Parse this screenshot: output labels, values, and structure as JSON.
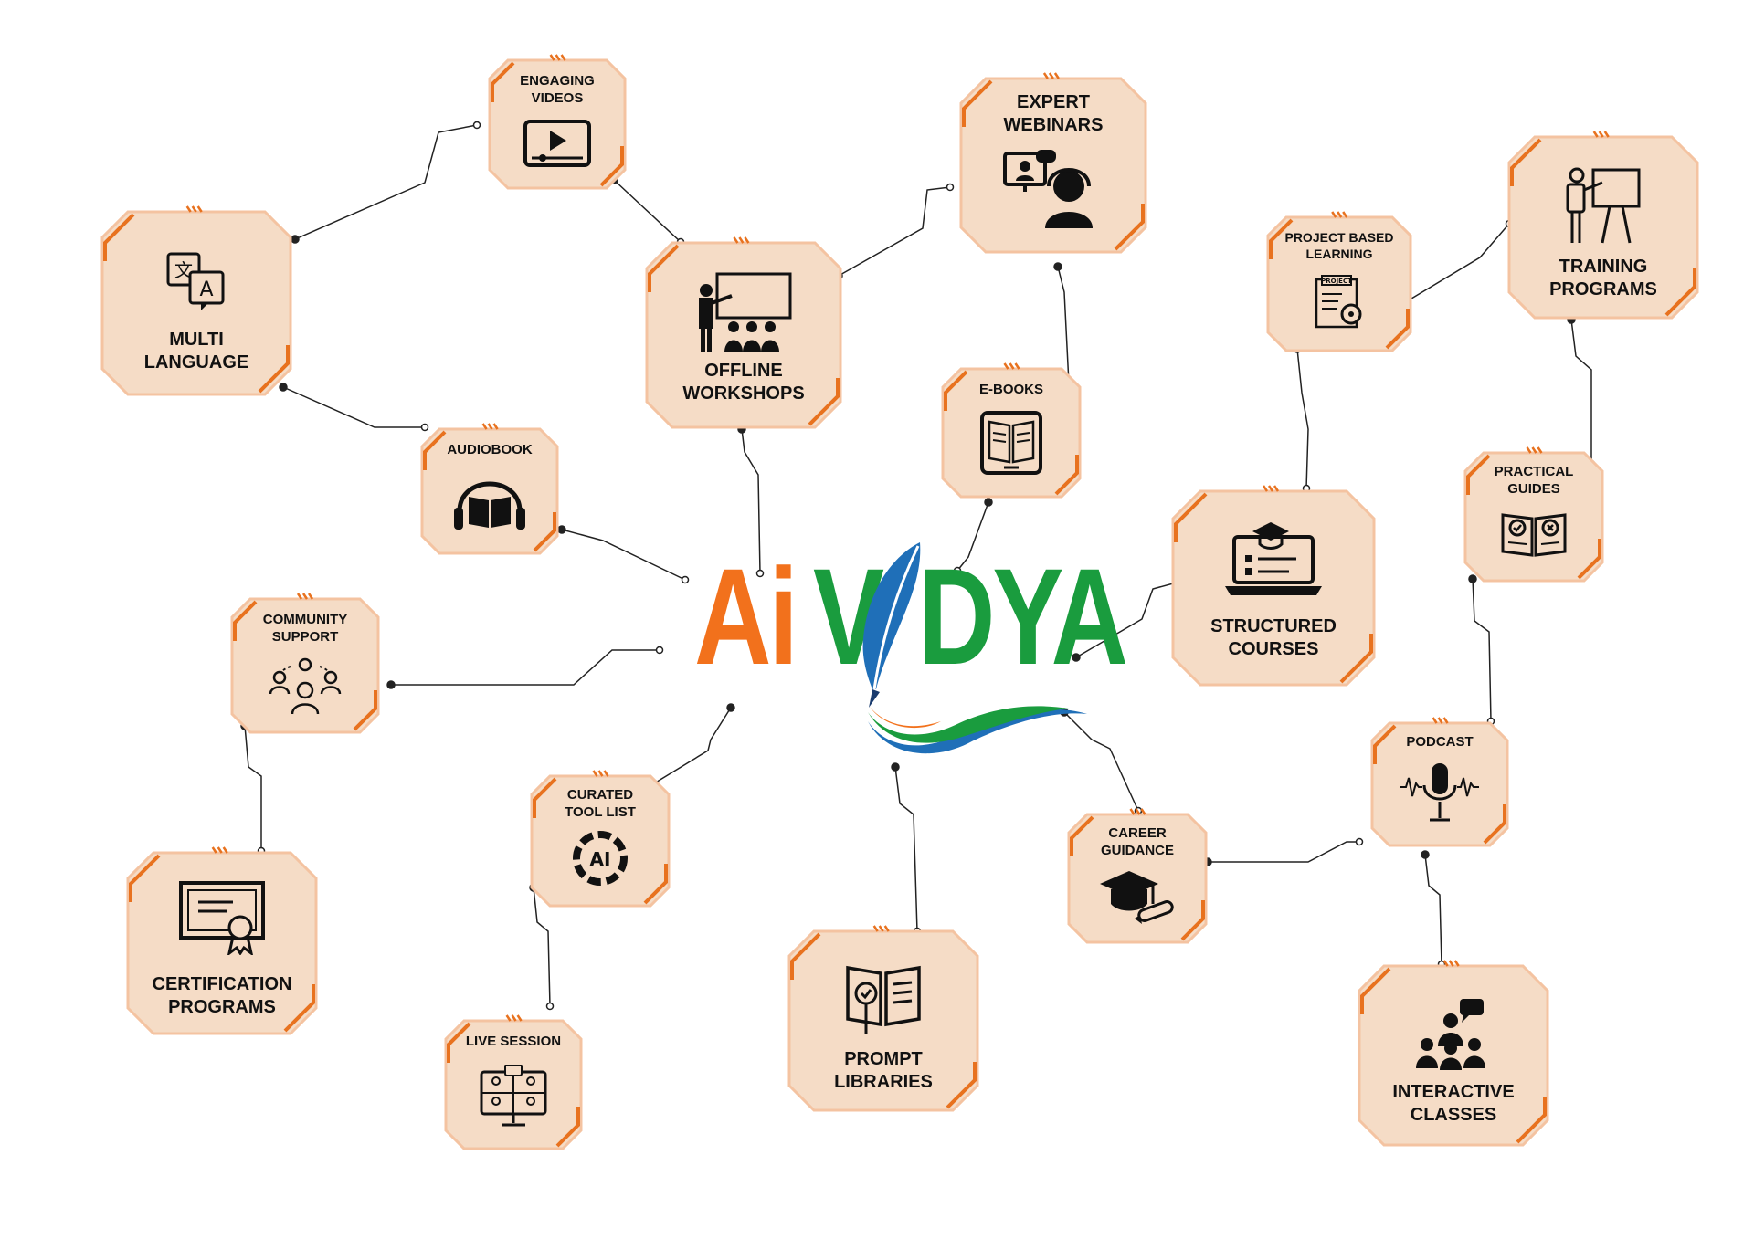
{
  "logo": {
    "part1": "Ai",
    "part2": "V",
    "part3": "DYA",
    "colors": {
      "orange": "#f2711c",
      "green": "#1a9c3e",
      "blue": "#1f6fb8"
    }
  },
  "theme": {
    "fill": "#f5dcc6",
    "stroke": "#f4c3a1",
    "accent": "#e8721f",
    "connector": "#222222"
  },
  "nodes": {
    "engaging_videos": {
      "label": "ENGAGING\nVIDEOS",
      "icon": "video-player-icon"
    },
    "expert_webinars": {
      "label": "EXPERT\nWEBINARS",
      "icon": "webinar-icon"
    },
    "multi_language": {
      "label": "MULTI\nLANGUAGE",
      "icon": "translate-icon"
    },
    "offline_workshops": {
      "label": "OFFLINE\nWORKSHOPS",
      "icon": "classroom-icon"
    },
    "project_based": {
      "label": "PROJECT BASED\nLEARNING",
      "icon": "project-scroll-icon"
    },
    "training_programs": {
      "label": "TRAINING\nPROGRAMS",
      "icon": "presenter-icon"
    },
    "ebooks": {
      "label": "E-BOOKS",
      "icon": "ebook-icon"
    },
    "audiobook": {
      "label": "AUDIOBOOK",
      "icon": "headphones-book-icon"
    },
    "practical_guides": {
      "label": "PRACTICAL\nGUIDES",
      "icon": "open-book-check-icon"
    },
    "structured_courses": {
      "label": "STRUCTURED\nCOURSES",
      "icon": "laptop-course-icon"
    },
    "community_support": {
      "label": "COMMUNITY\nSUPPORT",
      "icon": "community-icon"
    },
    "curated_tool_list": {
      "label": "CURATED\nTOOL LIST",
      "icon": "ai-chip-icon"
    },
    "podcast": {
      "label": "PODCAST",
      "icon": "microphone-icon"
    },
    "career_guidance": {
      "label": "CAREER\nGUIDANCE",
      "icon": "graduation-cap-icon"
    },
    "certification": {
      "label": "CERTIFICATION\nPROGRAMS",
      "icon": "certificate-icon"
    },
    "live_session": {
      "label": "LIVE SESSION",
      "icon": "video-call-icon"
    },
    "prompt_libraries": {
      "label": "PROMPT\nLIBRARIES",
      "icon": "prompt-book-icon"
    },
    "interactive_classes": {
      "label": "INTERACTIVE\nCLASSES",
      "icon": "group-discussion-icon"
    }
  }
}
